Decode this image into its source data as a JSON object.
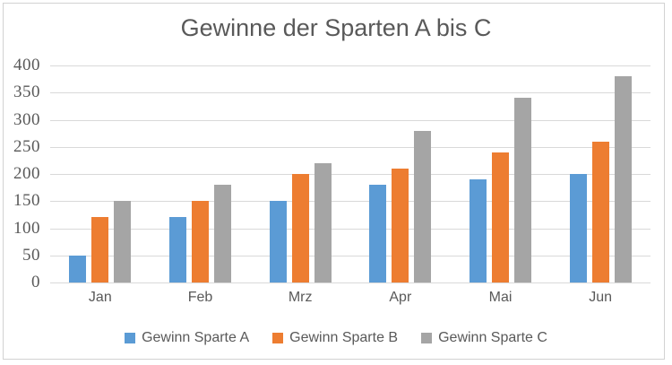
{
  "chart_data": {
    "type": "bar",
    "title": "Gewinne der Sparten A bis C",
    "categories": [
      "Jan",
      "Feb",
      "Mrz",
      "Apr",
      "Mai",
      "Jun"
    ],
    "series": [
      {
        "name": "Gewinn Sparte A",
        "color": "#5B9BD5",
        "values": [
          50,
          120,
          150,
          180,
          190,
          200
        ]
      },
      {
        "name": "Gewinn Sparte B",
        "color": "#ED7D31",
        "values": [
          120,
          150,
          200,
          210,
          240,
          260
        ]
      },
      {
        "name": "Gewinn Sparte C",
        "color": "#A5A5A5",
        "values": [
          150,
          180,
          220,
          280,
          340,
          380
        ]
      }
    ],
    "xlabel": "",
    "ylabel": "",
    "ylim": [
      0,
      400
    ],
    "ytick_step": 50,
    "ytick_labels": [
      "0",
      "50",
      "100",
      "150",
      "200",
      "250",
      "300",
      "350",
      "400"
    ],
    "grid": true,
    "legend_position": "bottom"
  },
  "colors": {
    "text": "#595959",
    "gridline": "#d9d9d9",
    "border": "#d2d2d2",
    "background": "#ffffff"
  }
}
